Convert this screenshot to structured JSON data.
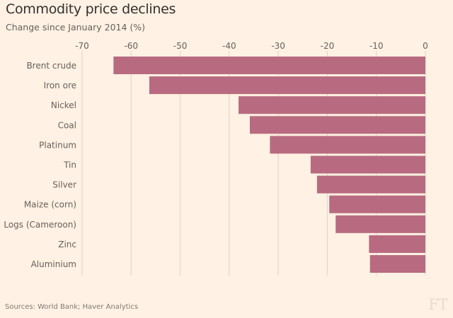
{
  "chart_data": {
    "type": "bar",
    "orientation": "horizontal",
    "title": "Commodity price declines",
    "subtitle": "Change since January 2014 (%)",
    "xlabel": "",
    "ylabel": "",
    "xlim": [
      -70,
      0
    ],
    "x_ticks": [
      -70,
      -60,
      -50,
      -40,
      -30,
      -20,
      -10,
      0
    ],
    "x_axis_position": "top",
    "grid": true,
    "categories": [
      "Brent crude",
      "Iron ore",
      "Nickel",
      "Coal",
      "Platinum",
      "Tin",
      "Silver",
      "Maize (corn)",
      "Logs (Cameroon)",
      "Zinc",
      "Aluminium"
    ],
    "values": [
      -63.6,
      -56.3,
      -38.1,
      -35.8,
      -31.7,
      -23.4,
      -22.1,
      -19.6,
      -18.3,
      -11.5,
      -11.3
    ],
    "bar_color": "#b86b80",
    "grid_color": "#e3d8cd",
    "source": "Sources: World Bank; Haver Analytics"
  },
  "branding": {
    "logo": "FT"
  }
}
